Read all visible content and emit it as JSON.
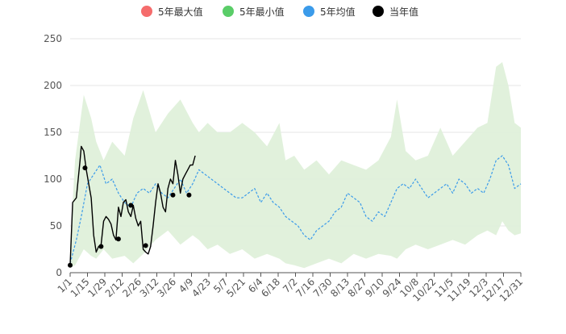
{
  "legend": [
    {
      "label": "5年最大值",
      "color": "#f56c6c"
    },
    {
      "label": "5年最小值",
      "color": "#5acd68"
    },
    {
      "label": "5年均值",
      "color": "#3b9bea"
    },
    {
      "label": "当年值",
      "color": "#000000"
    }
  ],
  "chart_data": {
    "type": "line",
    "title": "",
    "xlabel": "",
    "ylabel": "",
    "ylim": [
      0,
      250
    ],
    "yticks": [
      0,
      50,
      100,
      150,
      200,
      250
    ],
    "x_tick_labels": [
      "1/1",
      "1/15",
      "1/29",
      "2/12",
      "2/26",
      "3/12",
      "3/26",
      "4/9",
      "4/23",
      "5/7",
      "5/21",
      "6/4",
      "6/18",
      "7/2",
      "7/16",
      "7/30",
      "8/13",
      "8/27",
      "9/10",
      "9/24",
      "10/8",
      "10/22",
      "11/5",
      "11/19",
      "12/3",
      "12/17",
      "12/31"
    ],
    "band": {
      "name": "5年最大值 / 5年最小值",
      "color": "#dff0da",
      "max": [
        [
          1,
          28
        ],
        [
          5,
          120
        ],
        [
          12,
          190
        ],
        [
          18,
          165
        ],
        [
          22,
          140
        ],
        [
          28,
          120
        ],
        [
          35,
          140
        ],
        [
          45,
          125
        ],
        [
          52,
          165
        ],
        [
          60,
          195
        ],
        [
          70,
          150
        ],
        [
          80,
          170
        ],
        [
          90,
          185
        ],
        [
          100,
          160
        ],
        [
          105,
          150
        ],
        [
          112,
          160
        ],
        [
          120,
          150
        ],
        [
          130,
          150
        ],
        [
          140,
          160
        ],
        [
          150,
          150
        ],
        [
          160,
          135
        ],
        [
          170,
          160
        ],
        [
          175,
          120
        ],
        [
          182,
          125
        ],
        [
          190,
          110
        ],
        [
          200,
          120
        ],
        [
          210,
          105
        ],
        [
          220,
          120
        ],
        [
          230,
          115
        ],
        [
          240,
          110
        ],
        [
          250,
          120
        ],
        [
          260,
          145
        ],
        [
          265,
          185
        ],
        [
          272,
          130
        ],
        [
          280,
          120
        ],
        [
          290,
          125
        ],
        [
          300,
          155
        ],
        [
          310,
          125
        ],
        [
          320,
          140
        ],
        [
          330,
          155
        ],
        [
          338,
          160
        ],
        [
          345,
          220
        ],
        [
          350,
          225
        ],
        [
          355,
          200
        ],
        [
          360,
          160
        ],
        [
          365,
          155
        ]
      ],
      "min": [
        [
          1,
          5
        ],
        [
          5,
          8
        ],
        [
          12,
          25
        ],
        [
          18,
          18
        ],
        [
          22,
          15
        ],
        [
          28,
          25
        ],
        [
          35,
          15
        ],
        [
          45,
          18
        ],
        [
          52,
          10
        ],
        [
          60,
          20
        ],
        [
          70,
          35
        ],
        [
          80,
          45
        ],
        [
          90,
          30
        ],
        [
          100,
          40
        ],
        [
          105,
          35
        ],
        [
          112,
          25
        ],
        [
          120,
          30
        ],
        [
          130,
          20
        ],
        [
          140,
          25
        ],
        [
          150,
          15
        ],
        [
          160,
          20
        ],
        [
          170,
          15
        ],
        [
          175,
          10
        ],
        [
          182,
          8
        ],
        [
          190,
          5
        ],
        [
          200,
          10
        ],
        [
          210,
          15
        ],
        [
          220,
          10
        ],
        [
          230,
          20
        ],
        [
          240,
          15
        ],
        [
          250,
          20
        ],
        [
          260,
          18
        ],
        [
          265,
          15
        ],
        [
          272,
          25
        ],
        [
          280,
          30
        ],
        [
          290,
          25
        ],
        [
          300,
          30
        ],
        [
          310,
          35
        ],
        [
          320,
          30
        ],
        [
          330,
          40
        ],
        [
          338,
          45
        ],
        [
          345,
          40
        ],
        [
          350,
          55
        ],
        [
          355,
          45
        ],
        [
          360,
          40
        ],
        [
          365,
          42
        ]
      ]
    },
    "series": [
      {
        "name": "5年均值",
        "color": "#3b9bea",
        "style": "dashed",
        "points": [
          [
            1,
            10
          ],
          [
            6,
            35
          ],
          [
            10,
            60
          ],
          [
            15,
            95
          ],
          [
            20,
            105
          ],
          [
            25,
            115
          ],
          [
            30,
            95
          ],
          [
            35,
            100
          ],
          [
            40,
            85
          ],
          [
            45,
            75
          ],
          [
            50,
            70
          ],
          [
            55,
            85
          ],
          [
            60,
            90
          ],
          [
            65,
            85
          ],
          [
            70,
            95
          ],
          [
            75,
            85
          ],
          [
            80,
            80
          ],
          [
            85,
            90
          ],
          [
            90,
            100
          ],
          [
            95,
            85
          ],
          [
            100,
            95
          ],
          [
            105,
            110
          ],
          [
            110,
            105
          ],
          [
            115,
            100
          ],
          [
            120,
            95
          ],
          [
            125,
            90
          ],
          [
            130,
            85
          ],
          [
            135,
            80
          ],
          [
            140,
            80
          ],
          [
            145,
            85
          ],
          [
            150,
            90
          ],
          [
            155,
            75
          ],
          [
            160,
            85
          ],
          [
            165,
            75
          ],
          [
            170,
            70
          ],
          [
            175,
            60
          ],
          [
            180,
            55
          ],
          [
            185,
            50
          ],
          [
            190,
            40
          ],
          [
            195,
            35
          ],
          [
            200,
            45
          ],
          [
            205,
            50
          ],
          [
            210,
            55
          ],
          [
            215,
            65
          ],
          [
            220,
            70
          ],
          [
            225,
            85
          ],
          [
            230,
            80
          ],
          [
            235,
            75
          ],
          [
            240,
            60
          ],
          [
            245,
            55
          ],
          [
            250,
            65
          ],
          [
            255,
            60
          ],
          [
            260,
            75
          ],
          [
            265,
            90
          ],
          [
            270,
            95
          ],
          [
            275,
            90
          ],
          [
            280,
            100
          ],
          [
            285,
            90
          ],
          [
            290,
            80
          ],
          [
            295,
            85
          ],
          [
            300,
            90
          ],
          [
            305,
            95
          ],
          [
            310,
            85
          ],
          [
            315,
            100
          ],
          [
            320,
            95
          ],
          [
            325,
            85
          ],
          [
            330,
            90
          ],
          [
            335,
            85
          ],
          [
            340,
            100
          ],
          [
            345,
            120
          ],
          [
            350,
            125
          ],
          [
            355,
            115
          ],
          [
            360,
            90
          ],
          [
            365,
            95
          ]
        ]
      },
      {
        "name": "当年值",
        "color": "#000000",
        "style": "solid",
        "points": [
          [
            1,
            8
          ],
          [
            3,
            75
          ],
          [
            6,
            80
          ],
          [
            9,
            120
          ],
          [
            10,
            135
          ],
          [
            12,
            130
          ],
          [
            14,
            110
          ],
          [
            16,
            95
          ],
          [
            18,
            80
          ],
          [
            20,
            40
          ],
          [
            22,
            22
          ],
          [
            24,
            28
          ],
          [
            26,
            30
          ],
          [
            28,
            55
          ],
          [
            30,
            60
          ],
          [
            32,
            57
          ],
          [
            34,
            52
          ],
          [
            36,
            40
          ],
          [
            38,
            35
          ],
          [
            40,
            70
          ],
          [
            42,
            60
          ],
          [
            44,
            75
          ],
          [
            46,
            78
          ],
          [
            48,
            65
          ],
          [
            50,
            60
          ],
          [
            52,
            72
          ],
          [
            54,
            58
          ],
          [
            56,
            50
          ],
          [
            58,
            55
          ],
          [
            60,
            25
          ],
          [
            62,
            22
          ],
          [
            64,
            20
          ],
          [
            66,
            28
          ],
          [
            68,
            50
          ],
          [
            70,
            75
          ],
          [
            72,
            95
          ],
          [
            74,
            85
          ],
          [
            76,
            70
          ],
          [
            78,
            65
          ],
          [
            80,
            90
          ],
          [
            82,
            100
          ],
          [
            84,
            95
          ],
          [
            86,
            120
          ],
          [
            88,
            105
          ],
          [
            90,
            85
          ],
          [
            92,
            100
          ],
          [
            94,
            105
          ],
          [
            96,
            110
          ],
          [
            98,
            115
          ],
          [
            100,
            115
          ],
          [
            102,
            125
          ]
        ],
        "markers": [
          [
            1,
            8
          ],
          [
            13,
            112
          ],
          [
            26,
            28
          ],
          [
            40,
            36
          ],
          [
            50,
            72
          ],
          [
            62,
            29
          ],
          [
            84,
            83
          ],
          [
            97,
            83
          ]
        ]
      }
    ]
  }
}
